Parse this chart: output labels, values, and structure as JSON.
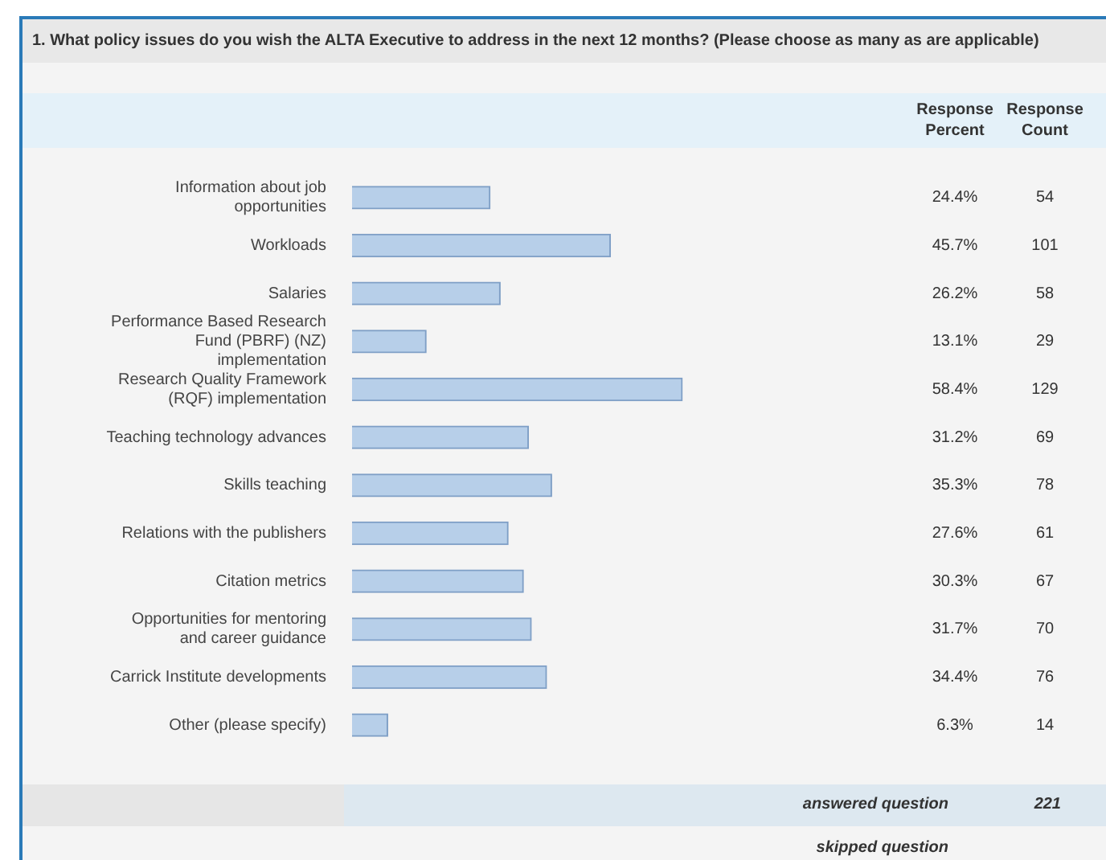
{
  "chart_data": {
    "type": "bar",
    "orientation": "horizontal",
    "title": "1. What policy issues do you wish the ALTA Executive to address in the next 12 months? (Please choose as many as are applicable)",
    "categories": [
      "Information about job opportunities",
      "Workloads",
      "Salaries",
      "Performance Based Research Fund (PBRF) (NZ) implementation",
      "Research Quality Framework (RQF) implementation",
      "Teaching technology advances",
      "Skills teaching",
      "Relations with the publishers",
      "Citation metrics",
      "Opportunities for mentoring and career guidance",
      "Carrick Institute developments",
      "Other (please specify)"
    ],
    "values": [
      24.4,
      45.7,
      26.2,
      13.1,
      58.4,
      31.2,
      35.3,
      27.6,
      30.3,
      31.7,
      34.4,
      6.3
    ],
    "value_labels": [
      "24.4%",
      "45.7%",
      "26.2%",
      "13.1%",
      "58.4%",
      "31.2%",
      "35.3%",
      "27.6%",
      "30.3%",
      "31.7%",
      "34.4%",
      "6.3%"
    ],
    "color": "#b7cfe9",
    "tick_labels": "y",
    "legend": false,
    "annotations": [
      "Response Percent",
      "Response Count",
      "answered question",
      "221",
      "skipped question",
      "54",
      "101",
      "58",
      "29",
      "129",
      "69",
      "78",
      "61",
      "67",
      "70",
      "76",
      "14"
    ]
  }
}
